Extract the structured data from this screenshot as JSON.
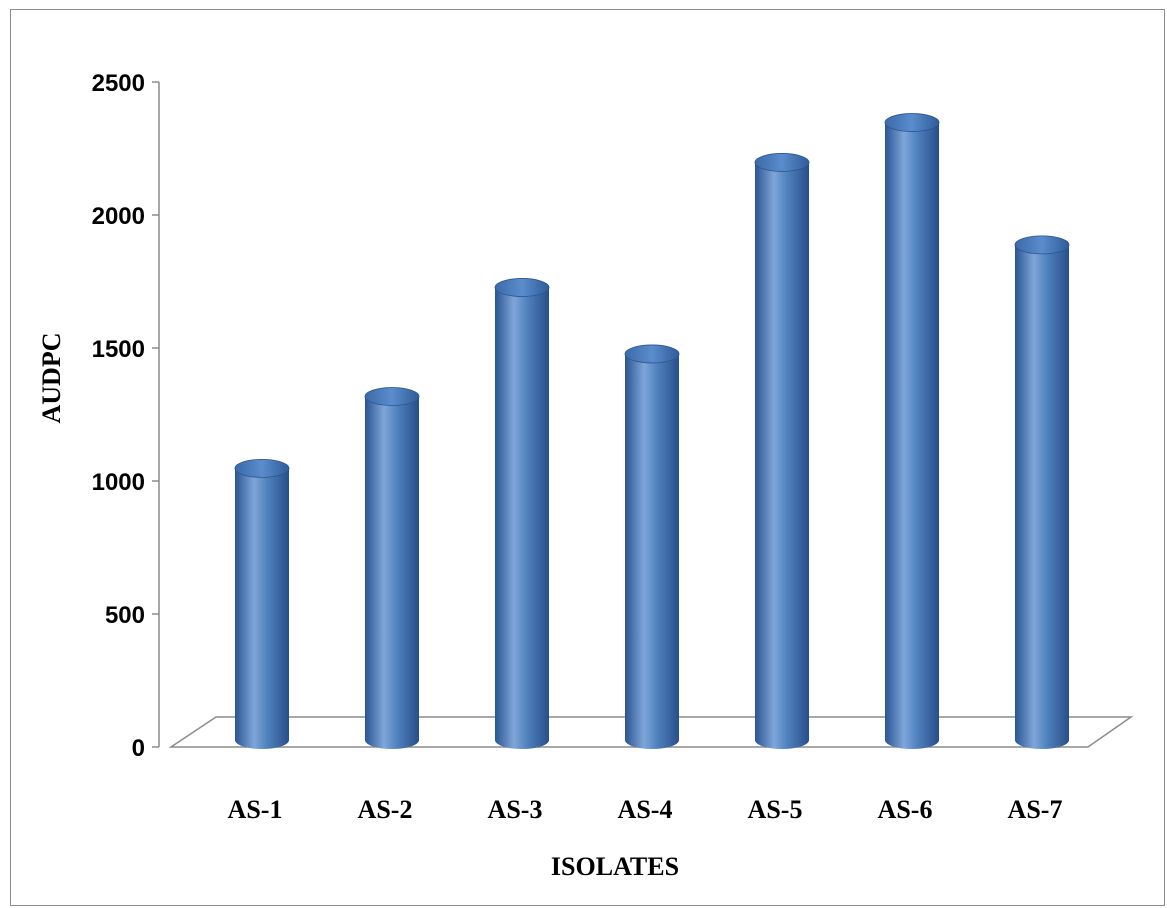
{
  "chart_data": {
    "type": "bar",
    "style": "3d-cylinder",
    "categories": [
      "AS-1",
      "AS-2",
      "AS-3",
      "AS-4",
      "AS-5",
      "AS-6",
      "AS-7"
    ],
    "values": [
      1010,
      1280,
      1690,
      1440,
      2160,
      2310,
      1850
    ],
    "xlabel": "ISOLATES",
    "ylabel": "AUDPC",
    "ylim": [
      0,
      2500
    ],
    "yticks": [
      0,
      500,
      1000,
      1500,
      2000,
      2500
    ],
    "grid": false,
    "legend": "none",
    "colors": {
      "bar": "#4f81bd",
      "bar_dark": "#2a5592",
      "bar_light": "#7fa6d9",
      "axis": "#8c8c8c"
    }
  }
}
